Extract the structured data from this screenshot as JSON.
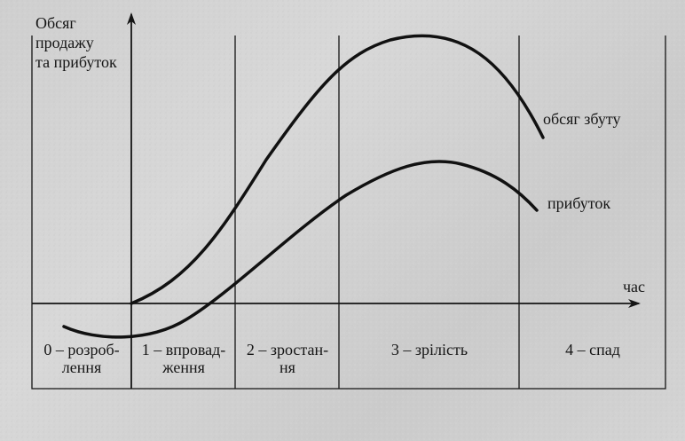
{
  "axes": {
    "y_label_line1": "Обсяг",
    "y_label_line2": "продажу",
    "y_label_line3": "та прибуток",
    "x_label": "час"
  },
  "curves": {
    "sales_label": "обсяг збуту",
    "profit_label": "прибуток"
  },
  "stages": [
    {
      "line1": "0 – розроб-",
      "line2": "лення"
    },
    {
      "line1": "1 – впровад-",
      "line2": "ження"
    },
    {
      "line1": "2 – зростан-",
      "line2": "ня"
    },
    {
      "line1": "3 – зрілість",
      "line2": ""
    },
    {
      "line1": "4 – спад",
      "line2": ""
    }
  ],
  "colors": {
    "ink": "#151515",
    "background": "#d2d2d2"
  }
}
